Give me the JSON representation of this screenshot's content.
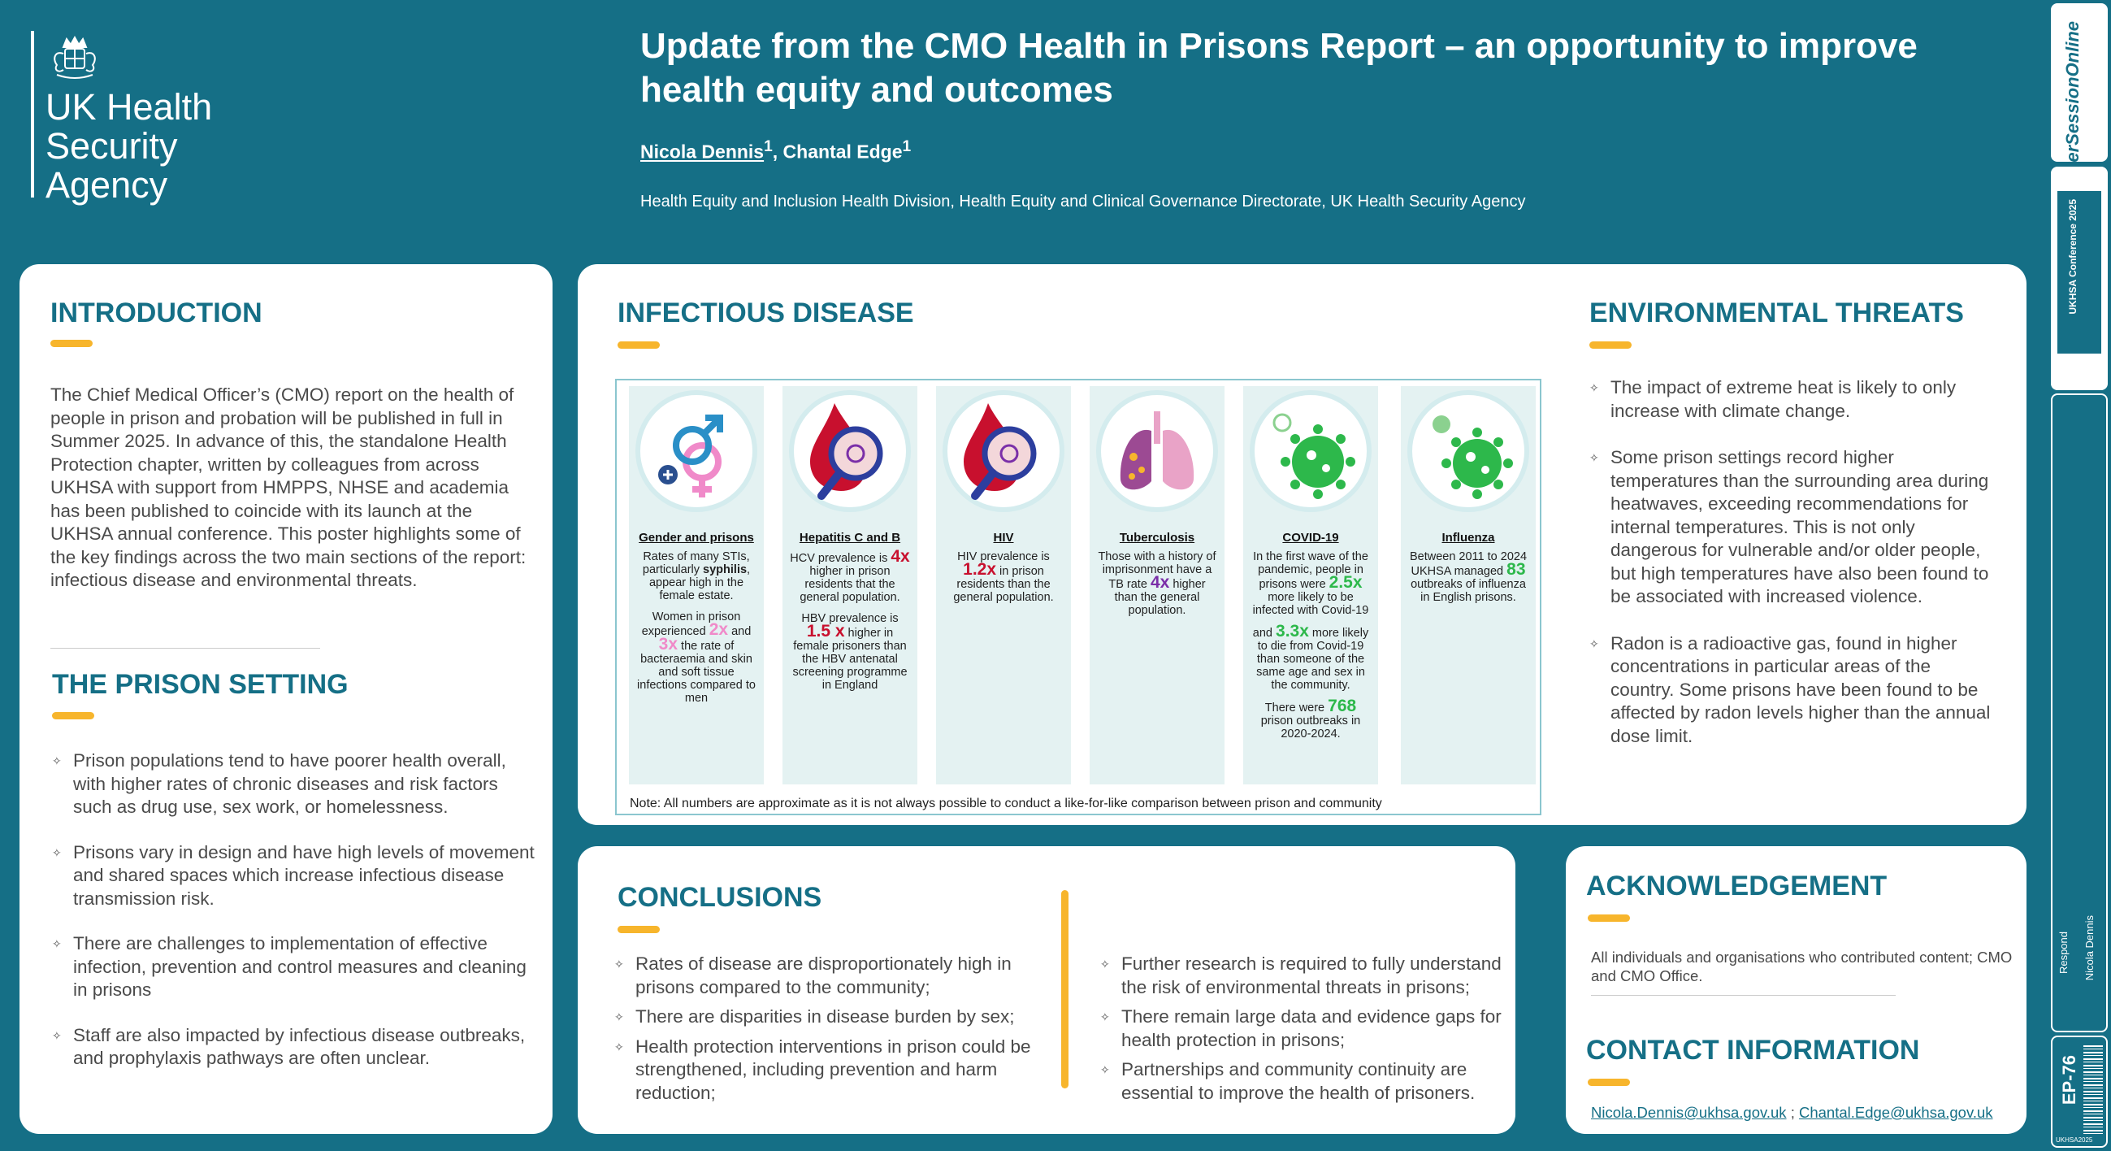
{
  "header": {
    "org_lines": [
      "UK Health",
      "Security",
      "Agency"
    ],
    "title": "Update from the CMO Health in Prisons Report – an opportunity to improve health equity and outcomes",
    "author1": "Nicola Dennis",
    "author1_sup": "1",
    "author2": ", Chantal Edge",
    "author2_sup": "1",
    "affiliation": "Health Equity and Inclusion Health Division, Health Equity and Clinical Governance Directorate, UK Health Security Agency"
  },
  "introduction": {
    "heading": "INTRODUCTION",
    "text": "The Chief Medical Officer’s (CMO) report on the health of people in prison and probation will be published in full in Summer 2025. In advance of this, the standalone Health Protection chapter, written by colleagues from across UKHSA with support from HMPPS, NHSE and academia has been published to coincide with its launch at the UKHSA annual conference. This poster highlights some of the key findings across the two main sections of the report: infectious disease and environmental threats."
  },
  "prison_setting": {
    "heading": "THE PRISON SETTING",
    "bullets": [
      "Prison populations tend to have poorer health overall, with higher rates of chronic diseases and risk factors such as drug use, sex work, or homelessness.",
      "Prisons vary in design and have high levels of movement and shared spaces which increase infectious disease transmission risk.",
      "There are challenges to implementation of effective infection, prevention and control measures and cleaning in prisons",
      "Staff are also impacted by infectious disease outbreaks, and prophylaxis pathways are often unclear."
    ]
  },
  "infectious": {
    "heading": "INFECTIOUS DISEASE",
    "cards": {
      "gender": {
        "icon": "gender-symbols-icon",
        "title": "Gender and prisons",
        "p1a": "Rates of many STIs, particularly ",
        "p1b": "syphilis",
        "p1c": ", appear high in the female estate.",
        "p2a": "Women in prison experienced ",
        "p2b": "2x",
        "p2c": " and ",
        "p2d": "3x",
        "p2e": " the rate of bacteraemia and skin and soft tissue infections compared to men"
      },
      "hep": {
        "icon": "blood-drop-virus-magnifier-icon",
        "title": "Hepatitis C and B",
        "p1a": "HCV prevalence is ",
        "p1b": "4x",
        "p1c": "  higher in prison residents that the general population.",
        "p2a": "HBV prevalence is ",
        "p2b": "1.5 x",
        "p2c": " higher in female prisoners than the HBV antenatal screening programme in England"
      },
      "hiv": {
        "icon": "blood-drop-virus-magnifier-icon",
        "title": "HIV",
        "p1a": "HIV prevalence is ",
        "p1b": "1.2x",
        "p1c": " in prison residents than the general population."
      },
      "tb": {
        "icon": "lungs-icon",
        "title": "Tuberculosis",
        "p1a": "Those with a history of imprisonment have a TB rate ",
        "p1b": "4x",
        "p1c": " higher than the general population."
      },
      "covid": {
        "icon": "coronavirus-icon",
        "title": "COVID-19",
        "p1a": "In the first wave of the pandemic, people in prisons were ",
        "p1b": "2.5x",
        "p1c": " more likely to be infected with Covid-19",
        "p2a": "and ",
        "p2b": "3.3x",
        "p2c": " more likely to die from Covid-19 than someone of the same age and sex in the community.",
        "p3a": "There were ",
        "p3b": "768",
        "p3c": " prison outbreaks in 2020-2024."
      },
      "flu": {
        "icon": "influenza-virus-icon",
        "title": "Influenza",
        "p1a": "Between 2011 to 2024 UKHSA managed ",
        "p1b": "83",
        "p1c": " outbreaks of influenza in English prisons."
      }
    },
    "note": "Note: All numbers are approximate as it is not always possible to conduct a like-for-like comparison between prison and community"
  },
  "environmental": {
    "heading": "ENVIRONMENTAL THREATS",
    "bullets": [
      "The impact of extreme heat is likely to only increase with climate change.",
      "Some prison settings record higher temperatures than the surrounding area during heatwaves, exceeding recommendations for internal temperatures. This is not only dangerous for vulnerable and/or older people, but high temperatures have also been found to be associated with increased violence.",
      "Radon is a radioactive gas, found in higher concentrations in particular areas of the country. Some prisons have been found to be affected by radon levels higher than the annual dose limit."
    ]
  },
  "conclusions": {
    "heading": "CONCLUSIONS",
    "left": [
      "Rates of disease are disproportionately high in prisons compared to the community;",
      "There are disparities in disease burden by sex;",
      "Health protection interventions in prison could be strengthened, including prevention and harm reduction;"
    ],
    "right": [
      "Further research is required to fully understand the risk of environmental threats in prisons;",
      "There remain large data and evidence gaps for health protection in prisons;",
      "Partnerships and community continuity are essential to improve the health of prisoners."
    ]
  },
  "acknowledgement": {
    "heading": "ACKNOWLEDGEMENT",
    "text": "All individuals and organisations who contributed content; CMO and CMO Office."
  },
  "contact": {
    "heading": "CONTACT INFORMATION",
    "email1": "Nicola.Dennis@ukhsa.gov.uk",
    "sep": " ; ",
    "email2": "Chantal.Edge@ukhsa.gov.uk"
  },
  "sidebar": {
    "brand": "PosterSessionOnline",
    "conference": "UKHSA Conference 2025",
    "respond": "Respond",
    "presenter": "Nicola Dennis",
    "code": "EP-76",
    "footer": "UKHSA2025"
  },
  "colors": {
    "teal": "#156F86",
    "accent": "#F7B52C",
    "red": "#C8102E",
    "pink": "#F08AC9",
    "purple": "#7A2FA8",
    "green": "#2DB84B"
  }
}
